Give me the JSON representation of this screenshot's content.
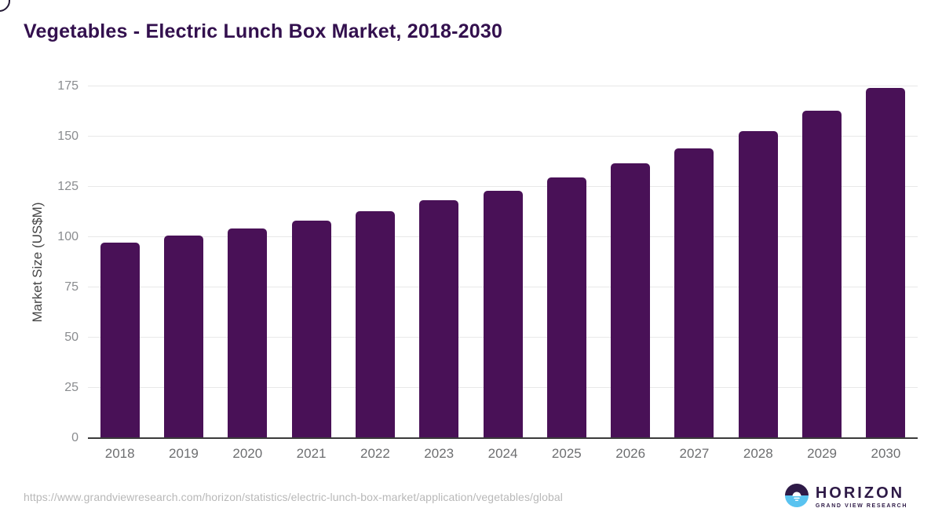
{
  "page": {
    "title": "Vegetables - Electric Lunch Box Market, 2018-2030"
  },
  "chart_data": {
    "type": "bar",
    "title": "Vegetables - Electric Lunch Box Market, 2018-2030",
    "xlabel": "",
    "ylabel": "Market Size (US$M)",
    "categories": [
      "2018",
      "2019",
      "2020",
      "2021",
      "2022",
      "2023",
      "2024",
      "2025",
      "2026",
      "2027",
      "2028",
      "2029",
      "2030"
    ],
    "values": [
      97.4,
      100.9,
      104.4,
      108.3,
      112.8,
      118.2,
      123.1,
      129.7,
      136.7,
      144.1,
      152.9,
      162.9,
      174.3
    ],
    "ylim": [
      0,
      175
    ],
    "ytick_step": 25,
    "yticks": [
      0,
      25,
      50,
      75,
      100,
      125,
      150,
      175
    ],
    "grid": true,
    "legend": false,
    "bar_color": "#491157"
  },
  "footer": {
    "source_url": "https://www.grandviewresearch.com/horizon/statistics/electric-lunch-box-market/application/vegetables/global",
    "logo": {
      "brand": "HORIZON",
      "sub_brand": "GRAND VIEW RESEARCH"
    }
  },
  "colors": {
    "title": "#33104e",
    "bar": "#491157",
    "axis_line": "#3b3b3b",
    "gridline": "#e8e8e8",
    "y_tick_label": "#8a8c8f",
    "x_tick_label": "#6d6e70",
    "y_axis_title": "#454545",
    "source_url": "#b8b8b8",
    "logo_purple": "#2e1a47",
    "logo_blue": "#59c3f0"
  }
}
